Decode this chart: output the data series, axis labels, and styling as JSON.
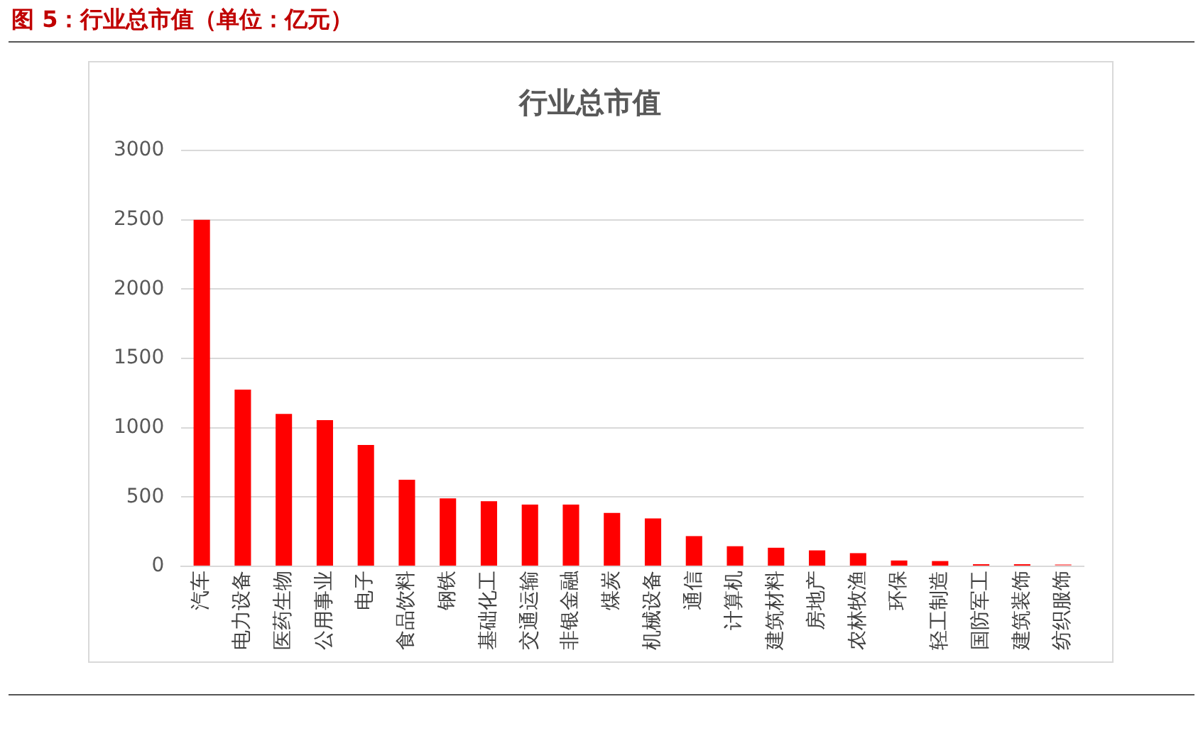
{
  "chart_data": {
    "type": "bar",
    "title": "行业总市值",
    "annotations": [
      "图 5：行业总市值（单位：亿元）"
    ],
    "categories": [
      "汽车",
      "电力设备",
      "医药生物",
      "公用事业",
      "电子",
      "食品饮料",
      "钢铁",
      "基础化工",
      "交通运输",
      "非银金融",
      "煤炭",
      "机械设备",
      "通信",
      "计算机",
      "建筑材料",
      "房地产",
      "农林牧渔",
      "环保",
      "轻工制造",
      "国防军工",
      "建筑装饰",
      "纺织服饰"
    ],
    "values": [
      2500,
      1275,
      1100,
      1055,
      875,
      625,
      490,
      470,
      445,
      445,
      385,
      345,
      218,
      145,
      134,
      115,
      95,
      42,
      38,
      15,
      15,
      15
    ],
    "colors": [
      "#ff0000",
      "#ff0000",
      "#ff0000",
      "#ff0000",
      "#ff0000",
      "#ff0000",
      "#ff0000",
      "#ff0000",
      "#ff0000",
      "#ff0000",
      "#ff0000",
      "#ff0000",
      "#ff0000",
      "#ff0000",
      "#ff0000",
      "#ff0000",
      "#ff0000",
      "#ff0000",
      "#ff0000",
      "#ff0000",
      "#ff0000",
      "#ff8080"
    ],
    "ylim": [
      0,
      3000
    ],
    "yticks": [
      0,
      500,
      1000,
      1500,
      2000,
      2500,
      3000
    ],
    "grid": "y",
    "legend": false
  }
}
